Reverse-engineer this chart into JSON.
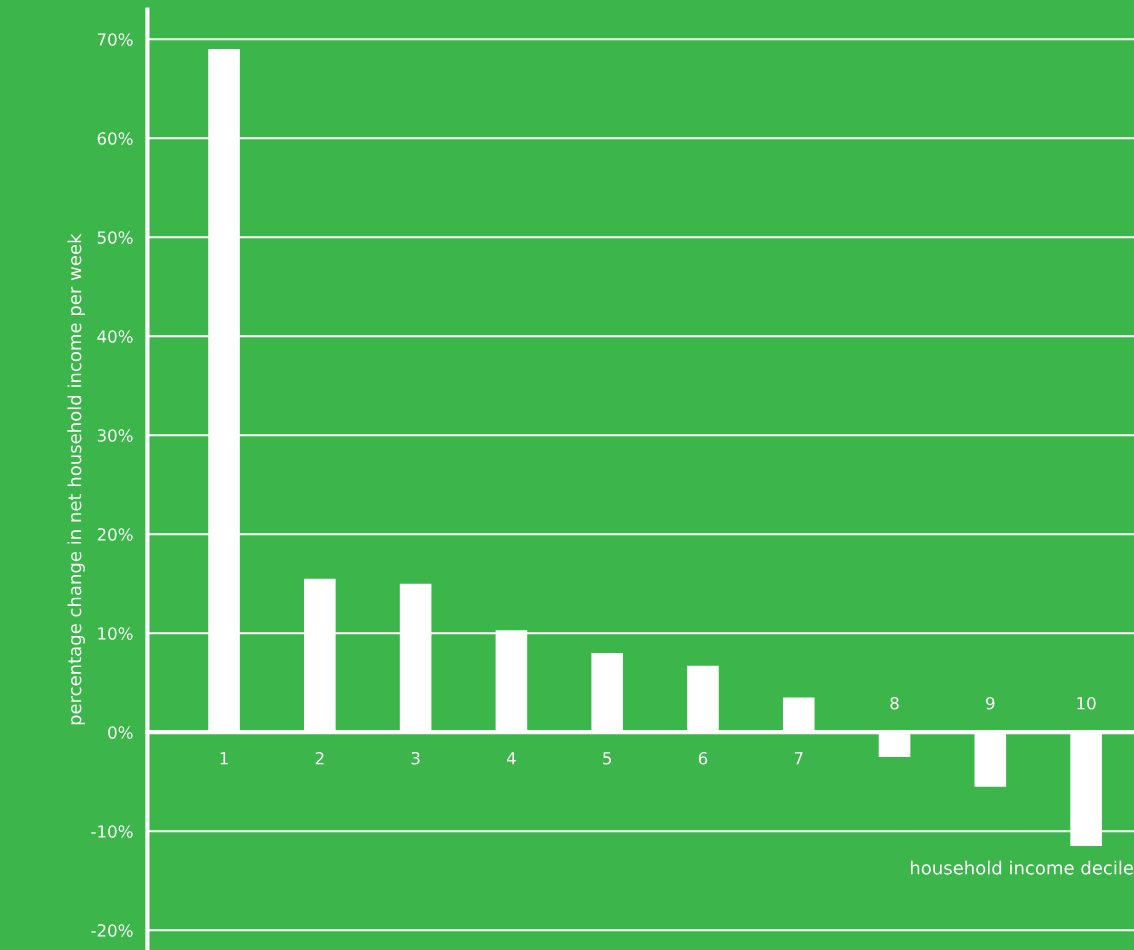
{
  "chart_data": {
    "type": "bar",
    "xlabel": "household income decile",
    "ylabel": "percentage change in net household income per week",
    "categories": [
      "1",
      "2",
      "3",
      "4",
      "5",
      "6",
      "7",
      "8",
      "9",
      "10"
    ],
    "values": [
      69,
      15.5,
      15,
      10.3,
      8,
      6.7,
      3.5,
      -2.5,
      -5.5,
      -11.5
    ],
    "color": "#ffffff",
    "ylim": [
      -22,
      73
    ],
    "yticks": [
      {
        "value": -20,
        "label": "-20%"
      },
      {
        "value": -10,
        "label": "-10%"
      },
      {
        "value": 0,
        "label": "0%"
      },
      {
        "value": 10,
        "label": "10%"
      },
      {
        "value": 20,
        "label": "20%"
      },
      {
        "value": 30,
        "label": "30%"
      },
      {
        "value": 40,
        "label": "40%"
      },
      {
        "value": 50,
        "label": "50%"
      },
      {
        "value": 60,
        "label": "60%"
      },
      {
        "value": 70,
        "label": "70%"
      }
    ],
    "grid": "y",
    "legend": false
  }
}
